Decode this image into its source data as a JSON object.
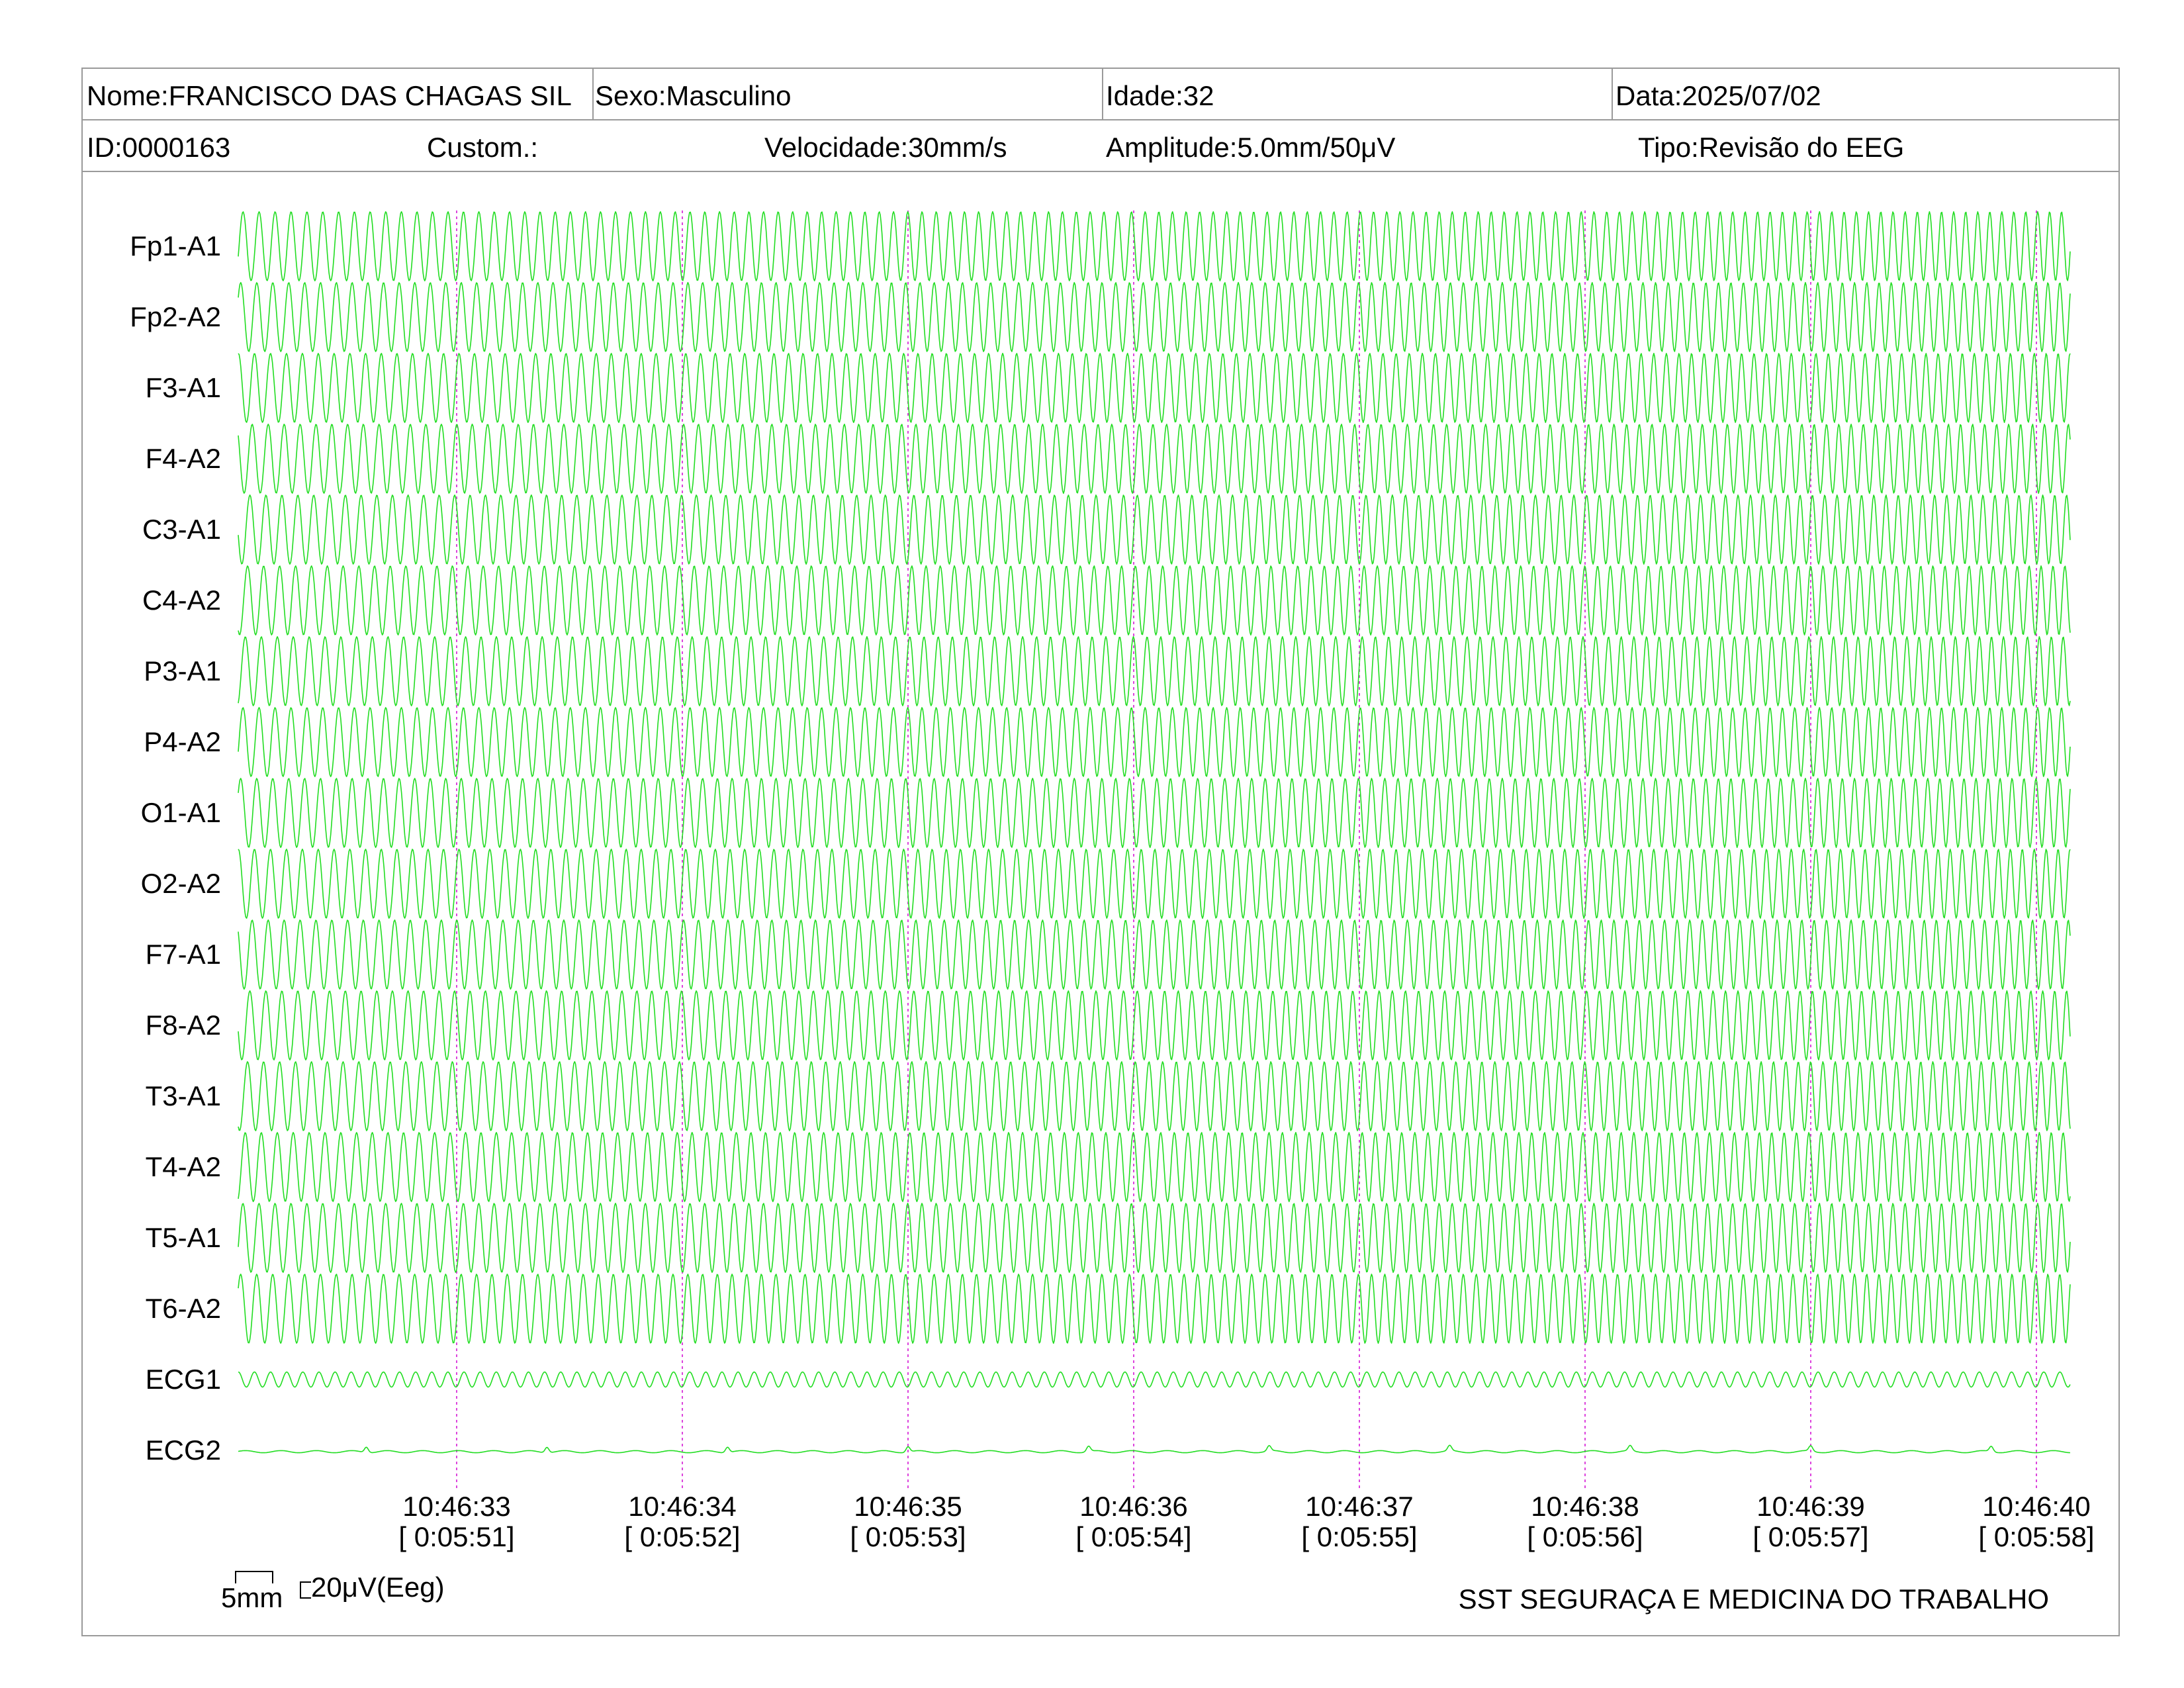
{
  "header": {
    "nome": "Nome:FRANCISCO DAS CHAGAS SIL",
    "sexo": "Sexo:Masculino",
    "idade": "Idade:32",
    "data": "Data:2025/07/02",
    "id": "ID:0000163",
    "custom": "Custom.:",
    "velocidade": "Velocidade:30mm/s",
    "amplitude": "Amplitude:5.0mm/50μV",
    "tipo": "Tipo:Revisão do EEG"
  },
  "footer": {
    "scale_time_label": "5mm",
    "scale_amp_label": "20μV(Eeg)",
    "organization": "SST SEGURAÇA E MEDICINA DO TRABALHO"
  },
  "colors": {
    "trace": "#22dd22",
    "time_marker": "#dd44dd",
    "border": "#9a9a9a"
  },
  "chart_data": {
    "type": "line",
    "description_of_axes": "",
    "channels": [
      "Fp1-A1",
      "Fp2-A2",
      "F3-A1",
      "F4-A2",
      "C3-A1",
      "C4-A2",
      "P3-A1",
      "P4-A2",
      "O1-A1",
      "O2-A2",
      "F7-A1",
      "F8-A2",
      "T3-A1",
      "T4-A2",
      "T5-A1",
      "T6-A2",
      "ECG1",
      "ECG2"
    ],
    "time_ticks": [
      {
        "clock": "10:46:33",
        "elapsed": "[ 0:05:51]"
      },
      {
        "clock": "10:46:34",
        "elapsed": "[ 0:05:52]"
      },
      {
        "clock": "10:46:35",
        "elapsed": "[ 0:05:53]"
      },
      {
        "clock": "10:46:36",
        "elapsed": "[ 0:05:54]"
      },
      {
        "clock": "10:46:37",
        "elapsed": "[ 0:05:55]"
      },
      {
        "clock": "10:46:38",
        "elapsed": "[ 0:05:56]"
      },
      {
        "clock": "10:46:39",
        "elapsed": "[ 0:05:57]"
      },
      {
        "clock": "10:46:40",
        "elapsed": "[ 0:05:58]"
      }
    ],
    "x_seconds_range": [
      -1.0,
      7.15
    ],
    "eeg_oscillation_hz_start": 14,
    "eeg_oscillation_hz_end": 19,
    "ecg1_oscillation_hz": 14,
    "eeg_amplitude_uv": 32,
    "ecg1_amplitude_uv": 7,
    "ecg2_amplitude_uv": 2,
    "grid": false
  }
}
